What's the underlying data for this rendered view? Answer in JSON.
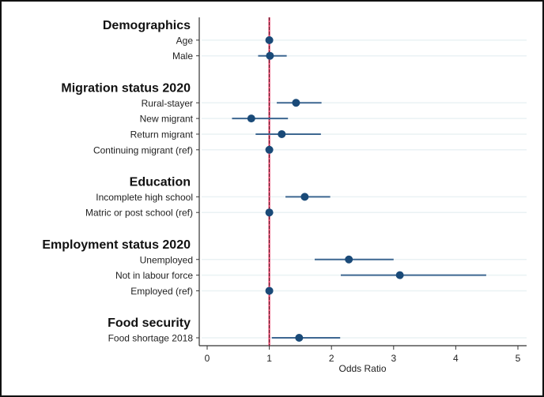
{
  "chart_data": {
    "type": "forest",
    "xlabel": "Odds Ratio",
    "xlim": [
      0,
      5
    ],
    "xticks": [
      "0",
      "1",
      "2",
      "3",
      "4",
      "5"
    ],
    "reference_line": 1,
    "colors": {
      "point": "#1a4a78",
      "ci": "#3d6791",
      "reference": "#e8456b",
      "grid": "#eaf2f4"
    },
    "rows": [
      {
        "type": "header",
        "label": "Demographics"
      },
      {
        "type": "item",
        "label": "Age",
        "or": 1.0,
        "lo": 1.0,
        "hi": 1.0
      },
      {
        "type": "item",
        "label": "Male",
        "or": 1.01,
        "lo": 0.82,
        "hi": 1.28
      },
      {
        "type": "blank"
      },
      {
        "type": "header",
        "label": "Migration status 2020"
      },
      {
        "type": "item",
        "label": "Rural-stayer",
        "or": 1.43,
        "lo": 1.12,
        "hi": 1.84
      },
      {
        "type": "item",
        "label": "New migrant",
        "or": 0.71,
        "lo": 0.4,
        "hi": 1.3
      },
      {
        "type": "item",
        "label": "Return migrant",
        "or": 1.2,
        "lo": 0.78,
        "hi": 1.83
      },
      {
        "type": "item",
        "label": "Continuing migrant (ref)",
        "or": 1.0,
        "lo": 1.0,
        "hi": 1.0
      },
      {
        "type": "blank"
      },
      {
        "type": "header",
        "label": "Education"
      },
      {
        "type": "item",
        "label": "Incomplete high school",
        "or": 1.57,
        "lo": 1.26,
        "hi": 1.98
      },
      {
        "type": "item",
        "label": "Matric or post school (ref)",
        "or": 1.0,
        "lo": 1.0,
        "hi": 1.0
      },
      {
        "type": "blank"
      },
      {
        "type": "header",
        "label": "Employment status 2020"
      },
      {
        "type": "item",
        "label": "Unemployed",
        "or": 2.28,
        "lo": 1.73,
        "hi": 3.0
      },
      {
        "type": "item",
        "label": "Not in labour force",
        "or": 3.1,
        "lo": 2.15,
        "hi": 4.49
      },
      {
        "type": "item",
        "label": "Employed (ref)",
        "or": 1.0,
        "lo": 1.0,
        "hi": 1.0
      },
      {
        "type": "blank"
      },
      {
        "type": "header",
        "label": "Food security"
      },
      {
        "type": "item",
        "label": "Food shortage 2018",
        "or": 1.48,
        "lo": 1.04,
        "hi": 2.14
      }
    ]
  }
}
